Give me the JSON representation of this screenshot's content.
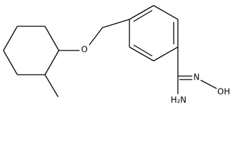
{
  "atoms": {
    "ether_oxygen": "O",
    "imine_nitrogen": "N",
    "hydroxyl": "OH",
    "amine": "H₂N"
  }
}
